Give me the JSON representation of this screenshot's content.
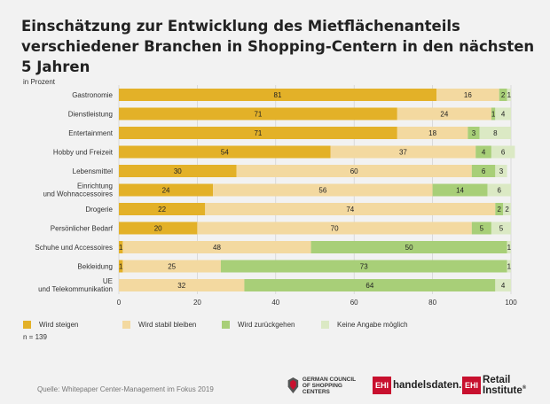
{
  "title": "Einschätzung zur Entwicklung des Mietflächenanteils verschiedener Branchen in Shopping-Centern in den nächsten 5 Jahren",
  "unit_label": "in Prozent",
  "sample_size": "n = 139",
  "source": "Quelle: Whitepaper Center-Management im Fokus 2019",
  "logos": {
    "gccs_line1": "GERMAN COUNCIL",
    "gccs_line2": "OF SHOPPING CENTERS",
    "ehi_box": "EHI",
    "handelsdaten_text": "handelsdaten.de",
    "retail_institute_text": "Retail Institute",
    "registered": "®"
  },
  "chart_data": {
    "type": "bar",
    "orientation": "horizontal",
    "stacked": true,
    "categories": [
      "Gastronomie",
      "Dienstleistung",
      "Entertainment",
      "Hobby und Freizeit",
      "Lebensmittel",
      "Einrichtung und Wohnaccessoires",
      "Drogerie",
      "Persönlicher Bedarf",
      "Schuhe und Accessoires",
      "Bekleidung",
      "UE und Telekommunikation"
    ],
    "series": [
      {
        "name": "Wird steigen",
        "color": "#e3b128",
        "values": [
          81,
          71,
          71,
          54,
          30,
          24,
          22,
          20,
          1,
          1,
          0
        ]
      },
      {
        "name": "Wird stabil bleiben",
        "color": "#f3d9a0",
        "values": [
          16,
          24,
          18,
          37,
          60,
          56,
          74,
          70,
          48,
          25,
          32
        ]
      },
      {
        "name": "Wird zurückgehen",
        "color": "#a8cf78",
        "values": [
          2,
          1,
          3,
          4,
          6,
          14,
          2,
          5,
          50,
          73,
          64
        ]
      },
      {
        "name": "Keine Angabe möglich",
        "color": "#dbe9c4",
        "values": [
          1,
          4,
          8,
          6,
          3,
          6,
          2,
          5,
          1,
          1,
          4
        ]
      }
    ],
    "xlim": [
      0,
      100
    ],
    "xticks": [
      0,
      20,
      40,
      60,
      80,
      100
    ],
    "grid": true,
    "legend_position": "bottom"
  }
}
